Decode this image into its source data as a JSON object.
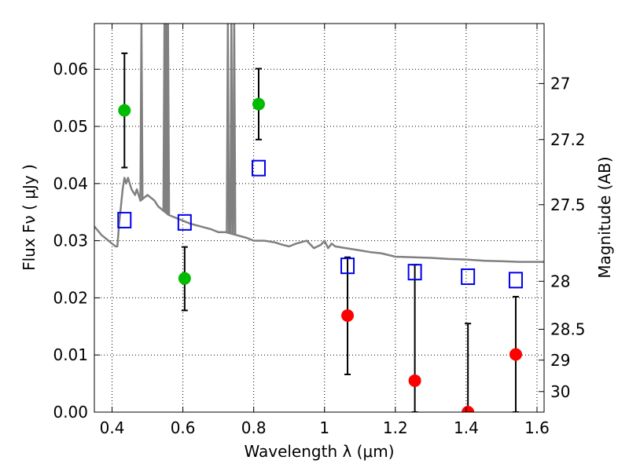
{
  "chart_data": {
    "type": "scatter",
    "xlabel": "Wavelength  λ (μm)",
    "ylabel": "Flux  Fν  ( μJy )",
    "ylabel_right": "Magnitude (AB)",
    "xlim": [
      0.35,
      1.62
    ],
    "ylim": [
      0,
      0.068
    ],
    "grid": true,
    "x_ticks": [
      0.4,
      0.6,
      0.8,
      1.0,
      1.2,
      1.4,
      1.6
    ],
    "x_tick_labels": [
      "0.4",
      "0.6",
      "0.8",
      "1",
      "1.2",
      "1.4",
      "1.6"
    ],
    "y_ticks": [
      0.0,
      0.01,
      0.02,
      0.03,
      0.04,
      0.05,
      0.06
    ],
    "y_tick_labels": [
      "0.00",
      "0.01",
      "0.02",
      "0.03",
      "0.04",
      "0.05",
      "0.06"
    ],
    "right_ticks": [
      {
        "flux": 0.0575,
        "label": "27"
      },
      {
        "flux": 0.0477,
        "label": "27.2"
      },
      {
        "flux": 0.0363,
        "label": "27.5"
      },
      {
        "flux": 0.0229,
        "label": "28"
      },
      {
        "flux": 0.0145,
        "label": "28.5"
      },
      {
        "flux": 0.0091,
        "label": "29"
      },
      {
        "flux": 0.0036,
        "label": "30"
      }
    ],
    "series": [
      {
        "marker": "circle",
        "color": "#00bb00",
        "x": [
          0.435,
          0.605,
          0.814
        ],
        "y": [
          0.0528,
          0.0234,
          0.0539
        ],
        "err_low": [
          0.0428,
          0.0178,
          0.0477
        ],
        "err_high": [
          0.0628,
          0.0289,
          0.0601
        ]
      },
      {
        "marker": "circle",
        "color": "#ff0000",
        "x": [
          1.065,
          1.255,
          1.405,
          1.54
        ],
        "y": [
          0.0169,
          0.0055,
          0.0,
          0.0101
        ],
        "err_low": [
          0.0066,
          0.0,
          0.0,
          0.0
        ],
        "err_high": [
          0.0271,
          0.0258,
          0.0155,
          0.0202
        ]
      },
      {
        "marker": "open-square",
        "color": "#0000ee",
        "x": [
          0.435,
          0.605,
          0.814,
          1.065,
          1.255,
          1.405,
          1.54
        ],
        "y": [
          0.0336,
          0.0332,
          0.0427,
          0.0256,
          0.0245,
          0.0237,
          0.0231
        ]
      },
      {
        "marker": "line",
        "color": "#808080",
        "x": [
          0.35,
          0.37,
          0.39,
          0.4,
          0.41,
          0.415,
          0.42,
          0.425,
          0.43,
          0.435,
          0.44,
          0.445,
          0.45,
          0.455,
          0.46,
          0.465,
          0.47,
          0.475,
          0.48,
          0.49,
          0.5,
          0.51,
          0.52,
          0.53,
          0.54,
          0.55,
          0.56,
          0.58,
          0.6,
          0.62,
          0.65,
          0.68,
          0.7,
          0.72,
          0.75,
          0.78,
          0.8,
          0.83,
          0.86,
          0.88,
          0.9,
          0.92,
          0.95,
          0.97,
          0.99,
          1.0,
          1.01,
          1.02,
          1.03,
          1.05,
          1.08,
          1.1,
          1.13,
          1.16,
          1.2,
          1.25,
          1.3,
          1.35,
          1.4,
          1.45,
          1.5,
          1.55,
          1.6,
          1.62
        ],
        "y": [
          0.0325,
          0.031,
          0.03,
          0.0295,
          0.029,
          0.029,
          0.033,
          0.036,
          0.039,
          0.041,
          0.04,
          0.041,
          0.04,
          0.039,
          0.0385,
          0.038,
          0.039,
          0.038,
          0.037,
          0.0375,
          0.038,
          0.0375,
          0.037,
          0.036,
          0.0355,
          0.035,
          0.0345,
          0.034,
          0.0335,
          0.033,
          0.0325,
          0.032,
          0.0315,
          0.0315,
          0.031,
          0.0305,
          0.03,
          0.03,
          0.0297,
          0.0293,
          0.029,
          0.0295,
          0.03,
          0.0287,
          0.0293,
          0.03,
          0.0287,
          0.0295,
          0.029,
          0.0288,
          0.0285,
          0.0283,
          0.028,
          0.0278,
          0.0272,
          0.0271,
          0.027,
          0.0268,
          0.0267,
          0.0265,
          0.0264,
          0.0263,
          0.0263,
          0.0263
        ]
      },
      {
        "marker": "spikes",
        "color": "#808080",
        "x": [
          0.483,
          0.548,
          0.553,
          0.558,
          0.727,
          0.737,
          0.745
        ],
        "y": [
          0.068,
          0.068,
          0.068,
          0.068,
          0.068,
          0.068,
          0.068
        ]
      }
    ]
  }
}
